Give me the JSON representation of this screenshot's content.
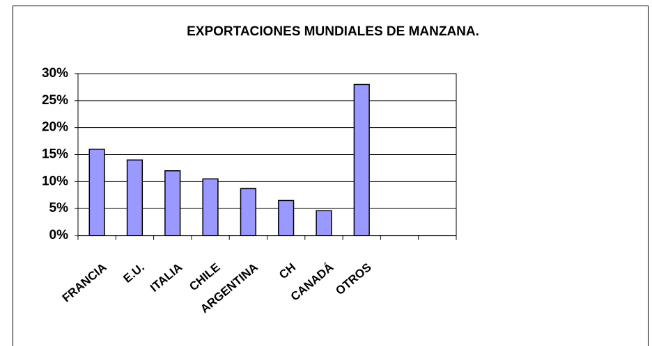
{
  "chart_data": {
    "type": "bar",
    "title": "EXPORTACIONES MUNDIALES DE MANZANA.",
    "categories": [
      "FRANCIA",
      "E.U.",
      "ITALIA",
      "CHILE",
      "ARGENTINA",
      "CH",
      "CANADÁ",
      "OTROS",
      null,
      null
    ],
    "values": [
      16,
      14,
      12,
      10.5,
      8.7,
      6.5,
      4.6,
      28,
      null,
      null
    ],
    "color": "#9999ff",
    "ylim": [
      0,
      30
    ],
    "yticks": [
      {
        "value": 0,
        "label": "0%"
      },
      {
        "value": 5,
        "label": "5%"
      },
      {
        "value": 10,
        "label": "10%"
      },
      {
        "value": 15,
        "label": "15%"
      },
      {
        "value": 20,
        "label": "20%"
      },
      {
        "value": 25,
        "label": "25%"
      },
      {
        "value": 30,
        "label": "30%"
      }
    ],
    "grid": true
  }
}
